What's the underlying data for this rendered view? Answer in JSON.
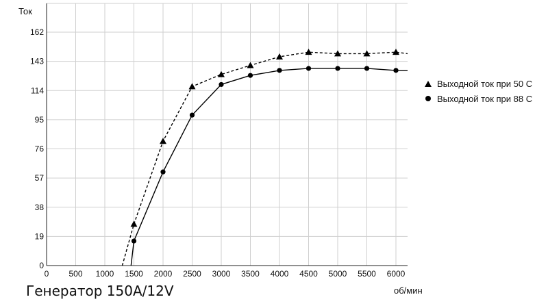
{
  "caption": "Генератор 150A/12V",
  "chart_data": {
    "type": "line",
    "title": "",
    "xlabel": "об/мин",
    "ylabel": "Ток",
    "x_ticks": [
      0,
      500,
      1000,
      1500,
      2000,
      2500,
      3000,
      3500,
      4000,
      4500,
      5000,
      5500,
      6000
    ],
    "y_ticks": [
      0,
      19,
      38,
      57,
      76,
      95,
      114,
      143,
      162
    ],
    "grid": true,
    "legend_position": "right",
    "series": [
      {
        "name": "Выходной ток при 50 С",
        "marker": "triangle",
        "line_style": "dashed",
        "color": "#000000",
        "points": [
          {
            "x": 1300,
            "y": 0
          },
          {
            "x": 1500,
            "y": 27
          },
          {
            "x": 2000,
            "y": 81
          },
          {
            "x": 2500,
            "y": 118
          },
          {
            "x": 3000,
            "y": 130
          },
          {
            "x": 3500,
            "y": 139
          },
          {
            "x": 4000,
            "y": 146
          },
          {
            "x": 4500,
            "y": 149
          },
          {
            "x": 5000,
            "y": 148
          },
          {
            "x": 5500,
            "y": 148
          },
          {
            "x": 6000,
            "y": 149
          },
          {
            "x": 6200,
            "y": 148
          }
        ]
      },
      {
        "name": "Выходной ток при 88 С",
        "marker": "circle",
        "line_style": "solid",
        "color": "#000000",
        "points": [
          {
            "x": 1450,
            "y": 0
          },
          {
            "x": 1500,
            "y": 16
          },
          {
            "x": 2000,
            "y": 61
          },
          {
            "x": 2500,
            "y": 98
          },
          {
            "x": 3000,
            "y": 120
          },
          {
            "x": 3500,
            "y": 129
          },
          {
            "x": 4000,
            "y": 134
          },
          {
            "x": 4500,
            "y": 136
          },
          {
            "x": 5000,
            "y": 136
          },
          {
            "x": 5500,
            "y": 136
          },
          {
            "x": 6000,
            "y": 134
          },
          {
            "x": 6200,
            "y": 134
          }
        ]
      }
    ]
  }
}
